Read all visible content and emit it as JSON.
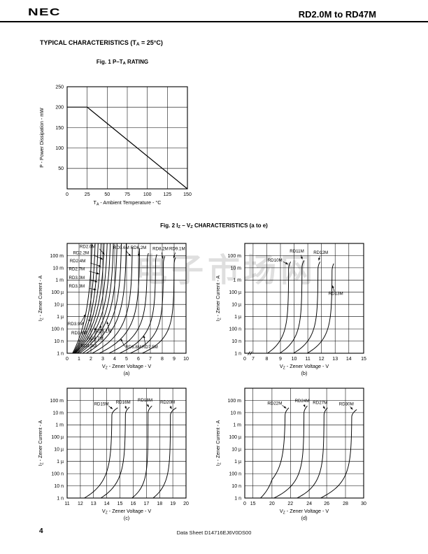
{
  "header": {
    "logo": "NEC",
    "title": "RD2.0M to RD47M"
  },
  "section_title": [
    {
      "t": "TYPICAL CHARACTERISTICS (T"
    },
    {
      "t": "A",
      "sub": true
    },
    {
      "t": " = 25°C)"
    }
  ],
  "fig1_caption": [
    {
      "t": "Fig. 1  P–T"
    },
    {
      "t": "A",
      "sub": true
    },
    {
      "t": " RATING"
    }
  ],
  "fig2_caption": [
    {
      "t": "Fig. 2  I"
    },
    {
      "t": "Z",
      "sub": true
    },
    {
      "t": " – V"
    },
    {
      "t": "Z",
      "sub": true
    },
    {
      "t": " CHARACTERISTICS (a to e)"
    }
  ],
  "watermark": {
    "text": "电子市场网"
  },
  "footer": {
    "page_number": "4",
    "doc_number": "Data Sheet  D14716EJ6V0DS00"
  },
  "chart_data": [
    {
      "id": "fig1",
      "type": "line",
      "title": "Fig. 1 P–TA RATING",
      "xlabel": [
        {
          "t": "T"
        },
        {
          "t": "A",
          "sub": true
        },
        {
          "t": " - Ambient Temperature - °C"
        }
      ],
      "ylabel": [
        {
          "t": "P - Power Dissipation - mW"
        }
      ],
      "xlim": [
        0,
        150
      ],
      "ylim": [
        0,
        250
      ],
      "xticks": [
        {
          "label": "0",
          "v": 0
        },
        {
          "label": "25",
          "v": 25
        },
        {
          "label": "50",
          "v": 50
        },
        {
          "label": "75",
          "v": 75
        },
        {
          "label": "100",
          "v": 100
        },
        {
          "label": "125",
          "v": 125
        },
        {
          "label": "150",
          "v": 150
        }
      ],
      "yticks": [
        {
          "label": "50",
          "v": 50
        },
        {
          "label": "100",
          "v": 100
        },
        {
          "label": "150",
          "v": 150
        },
        {
          "label": "200",
          "v": 200
        },
        {
          "label": "250",
          "v": 250
        }
      ],
      "series": [
        {
          "name": "power-derating",
          "points": [
            [
              0,
              200
            ],
            [
              25,
              200
            ],
            [
              150,
              0
            ]
          ]
        }
      ]
    },
    {
      "id": "a",
      "type": "zener",
      "sublabel": "(a)",
      "xlabel": [
        {
          "t": "V"
        },
        {
          "t": "Z",
          "sub": true
        },
        {
          "t": " - Zener Voltage - V"
        }
      ],
      "ylabel": [
        {
          "t": "I"
        },
        {
          "t": "Z",
          "sub": true
        },
        {
          "t": " - Zener Current - A"
        }
      ],
      "yticks": [
        "100 m",
        "10 m",
        "1 m",
        "100 µ",
        "10 µ",
        "1 µ",
        "100 n",
        "10 n",
        "1 n"
      ],
      "xticks": [
        {
          "label": "0",
          "v": 0,
          "p": 0
        },
        {
          "label": "1",
          "v": 1,
          "p": 0.1
        },
        {
          "label": "2",
          "v": 2,
          "p": 0.2
        },
        {
          "label": "3",
          "v": 3,
          "p": 0.3
        },
        {
          "label": "4",
          "v": 4,
          "p": 0.4
        },
        {
          "label": "5",
          "v": 5,
          "p": 0.5
        },
        {
          "label": "6",
          "v": 6,
          "p": 0.6
        },
        {
          "label": "7",
          "v": 7,
          "p": 0.7
        },
        {
          "label": "8",
          "v": 8,
          "p": 0.8
        },
        {
          "label": "9",
          "v": 9,
          "p": 0.9
        },
        {
          "label": "10",
          "v": 10,
          "p": 1
        }
      ],
      "curves": [
        {
          "name": "RD2.0M",
          "xb": 0.45,
          "xt": 2.2,
          "tau": 3.2,
          "dtop": 9,
          "hook": 0
        },
        {
          "name": "RD2.2M",
          "xb": 0.5,
          "xt": 2.45,
          "tau": 3.0,
          "dtop": 9,
          "hook": 0
        },
        {
          "name": "RD2.4M",
          "xb": 0.55,
          "xt": 2.7,
          "tau": 2.9,
          "dtop": 9,
          "hook": 0
        },
        {
          "name": "RD2.7M",
          "xb": 0.6,
          "xt": 2.95,
          "tau": 2.8,
          "dtop": 9,
          "hook": 0
        },
        {
          "name": "RD3.0M",
          "xb": 0.65,
          "xt": 3.2,
          "tau": 2.7,
          "dtop": 9,
          "hook": 0
        },
        {
          "name": "RD3.3M",
          "xb": 0.7,
          "xt": 3.45,
          "tau": 2.6,
          "dtop": 9,
          "hook": 0
        },
        {
          "name": "RD3.6M",
          "xb": 0.8,
          "xt": 3.7,
          "tau": 2.45,
          "dtop": 9,
          "hook": 0
        },
        {
          "name": "RD3.9M",
          "xb": 0.9,
          "xt": 3.95,
          "tau": 2.3,
          "dtop": 9,
          "hook": 0
        },
        {
          "name": "RD4.3M",
          "xb": 1.05,
          "xt": 4.25,
          "tau": 2.2,
          "dtop": 9,
          "hook": 0
        },
        {
          "name": "RD4.7M",
          "xb": 1.3,
          "xt": 4.6,
          "tau": 2.05,
          "dtop": 9,
          "hook": 0
        },
        {
          "name": "RD5.1M",
          "xb": 1.6,
          "xt": 5.0,
          "tau": 1.9,
          "dtop": 9,
          "hook": 0
        },
        {
          "name": "RD5.6M",
          "xb": 2.1,
          "xt": 5.5,
          "tau": 1.7,
          "dtop": 8.7,
          "hook": 0
        },
        {
          "name": "RD6.2M",
          "xb": 2.7,
          "xt": 6.1,
          "tau": 1.55,
          "dtop": 8.6,
          "hook": 0
        },
        {
          "name": "RD6.8M",
          "xb": 3.5,
          "xt": 6.75,
          "tau": 1.4,
          "dtop": 8.2,
          "hook": 0.1
        },
        {
          "name": "RD7.5M",
          "xb": 4.4,
          "xt": 7.45,
          "tau": 1.3,
          "dtop": 8.1,
          "hook": 0.1
        },
        {
          "name": "RD8.2M",
          "xb": 5.3,
          "xt": 8.1,
          "tau": 1.2,
          "dtop": 7.95,
          "hook": 0.12
        },
        {
          "name": "RD9.1M",
          "xb": 6.3,
          "xt": 9.0,
          "tau": 1.15,
          "dtop": 7.85,
          "hook": 0.12
        }
      ],
      "labels": [
        {
          "text": "RD2.0M",
          "anchor": "start",
          "lx": 1.05,
          "ld": 8.62,
          "ax1": 2.72,
          "ay1": 8.55,
          "ax2": 3.15,
          "ay2": 8.1
        },
        {
          "text": "RD2.2M",
          "anchor": "start",
          "lx": 0.5,
          "ld": 8.12,
          "ax1": 2.2,
          "ay1": 8.05,
          "ax2": 3.0,
          "ay2": 7.7
        },
        {
          "text": "RD2.4M",
          "anchor": "start",
          "lx": 0.22,
          "ld": 7.45,
          "ax1": 1.95,
          "ay1": 7.4,
          "ax2": 2.85,
          "ay2": 7.1
        },
        {
          "text": "RD2.7M",
          "anchor": "start",
          "lx": 0.15,
          "ld": 6.78,
          "ax1": 1.85,
          "ay1": 6.72,
          "ax2": 2.7,
          "ay2": 6.5
        },
        {
          "text": "RD3.0M",
          "anchor": "start",
          "lx": 0.15,
          "ld": 6.08,
          "ax1": 1.85,
          "ay1": 6.02,
          "ax2": 2.55,
          "ay2": 5.85
        },
        {
          "text": "RD3.3M",
          "anchor": "start",
          "lx": 0.15,
          "ld": 5.38,
          "ax1": 1.85,
          "ay1": 5.32,
          "ax2": 2.45,
          "ay2": 5.2
        },
        {
          "text": "RD5.6M",
          "anchor": "middle",
          "lx": 4.55,
          "ld": 8.55,
          "ax1": 4.95,
          "ay1": 8.4,
          "ax2": 5.35,
          "ay2": 7.95
        },
        {
          "text": "RD6.2M",
          "anchor": "middle",
          "lx": 6.0,
          "ld": 8.55,
          "ax1": 6.0,
          "ay1": 8.35,
          "ax2": 6.05,
          "ay2": 7.95
        },
        {
          "text": "RD8.2M",
          "anchor": "middle",
          "lx": 7.85,
          "ld": 8.45,
          "ax1": 7.95,
          "ay1": 8.25,
          "ax2": 8.05,
          "ay2": 7.75
        },
        {
          "text": "RD9.1M",
          "anchor": "middle",
          "lx": 9.25,
          "ld": 8.45,
          "ax1": 9.1,
          "ay1": 8.25,
          "ax2": 8.95,
          "ay2": 7.8
        },
        {
          "text": "RD3.9M",
          "anchor": "start",
          "lx": 0.05,
          "ld": 2.3,
          "ax1": 1.15,
          "ay1": 2.5,
          "ax2": 1.55,
          "ay2": 3.2
        },
        {
          "text": "RD3.6M",
          "anchor": "start",
          "lx": 0.35,
          "ld": 1.55,
          "ax1": 1.55,
          "ay1": 1.75,
          "ax2": 1.9,
          "ay2": 2.85
        },
        {
          "text": "RD4.3M",
          "anchor": "start",
          "lx": 1.15,
          "ld": 0.5,
          "ax1": 2.35,
          "ay1": 0.7,
          "ax2": 2.35,
          "ay2": 2.1
        },
        {
          "text": "RD4.7M",
          "anchor": "start",
          "lx": 1.7,
          "ld": 1.1,
          "ax1": 2.9,
          "ay1": 1.25,
          "ax2": 2.8,
          "ay2": 2.3
        },
        {
          "text": "RD5.1M",
          "anchor": "start",
          "lx": 2.4,
          "ld": 1.7,
          "ax1": 3.55,
          "ay1": 1.85,
          "ax2": 3.35,
          "ay2": 2.6
        },
        {
          "text": "RD6.8M",
          "anchor": "start",
          "lx": 4.9,
          "ld": 0.4,
          "ax1": 4.85,
          "ay1": 0.55,
          "ax2": 4.5,
          "ay2": 1.2
        },
        {
          "text": "RD7.5M",
          "anchor": "start",
          "lx": 6.3,
          "ld": 0.4,
          "ax1": 6.6,
          "ay1": 0.6,
          "ax2": 6.45,
          "ay2": 1.45
        }
      ]
    },
    {
      "id": "b",
      "type": "zener",
      "sublabel": "(b)",
      "xbreak": 0.035,
      "xlabel": [
        {
          "t": "V"
        },
        {
          "t": "Z",
          "sub": true
        },
        {
          "t": " - Zener Voltage - V"
        }
      ],
      "ylabel": [
        {
          "t": "I"
        },
        {
          "t": "Z",
          "sub": true
        },
        {
          "t": " - Zener Current - A"
        }
      ],
      "yticks": [
        "100 m",
        "10 m",
        "1 m",
        "100 µ",
        "10 µ",
        "1 µ",
        "100 n",
        "10 n",
        "1 n"
      ],
      "xticks": [
        {
          "label": "0",
          "v": 0,
          "p": 0
        },
        {
          "label": "7",
          "v": 7,
          "p": 0.07
        },
        {
          "label": "8",
          "v": 8,
          "p": 0.185
        },
        {
          "label": "9",
          "v": 9,
          "p": 0.3
        },
        {
          "label": "10",
          "v": 10,
          "p": 0.415
        },
        {
          "label": "11",
          "v": 11,
          "p": 0.53
        },
        {
          "label": "12",
          "v": 12,
          "p": 0.645
        },
        {
          "label": "13",
          "v": 13,
          "p": 0.76
        },
        {
          "label": "14",
          "v": 14,
          "p": 0.875
        },
        {
          "label": "15",
          "v": 15,
          "p": 1
        }
      ],
      "curves": [
        {
          "name": "RD10M",
          "xb": 8.05,
          "xt": 9.6,
          "tau": 1.15,
          "dtop": 7.5,
          "hook": 0.15
        },
        {
          "name": "RD11M",
          "xb": 8.95,
          "xt": 10.58,
          "tau": 1.15,
          "dtop": 7.6,
          "hook": 0.15
        },
        {
          "name": "RD12M",
          "xb": 9.95,
          "xt": 11.75,
          "tau": 1.15,
          "dtop": 7.5,
          "hook": 0.15
        },
        {
          "name": "RD13M",
          "xb": 10.95,
          "xt": 12.78,
          "tau": 1.15,
          "dtop": 7.35,
          "hook": 0.12
        }
      ],
      "labels": [
        {
          "text": "RD10M",
          "anchor": "middle",
          "lx": 8.6,
          "ld": 7.5,
          "ax1": 9.2,
          "ay1": 7.5,
          "ax2": 9.55,
          "ay2": 7.3
        },
        {
          "text": "RD11M",
          "anchor": "middle",
          "lx": 10.2,
          "ld": 8.25,
          "ax1": 10.5,
          "ay1": 8.05,
          "ax2": 10.6,
          "ay2": 7.7
        },
        {
          "text": "RD12M",
          "anchor": "middle",
          "lx": 11.95,
          "ld": 8.15,
          "ax1": 11.88,
          "ay1": 7.95,
          "ax2": 11.8,
          "ay2": 7.6
        },
        {
          "text": "RD13M",
          "anchor": "middle",
          "lx": 13.05,
          "ld": 4.8,
          "ax1": 12.95,
          "ay1": 5.05,
          "ax2": 12.8,
          "ay2": 5.55
        }
      ]
    },
    {
      "id": "c",
      "type": "zener",
      "sublabel": "(c)",
      "xlabel": [
        {
          "t": "V"
        },
        {
          "t": "Z",
          "sub": true
        },
        {
          "t": " - Zener Voltage - V"
        }
      ],
      "ylabel": [
        {
          "t": "I"
        },
        {
          "t": "Z",
          "sub": true
        },
        {
          "t": " - Zener Current - A"
        }
      ],
      "yticks": [
        "100 m",
        "10 m",
        "1 m",
        "100 µ",
        "10 µ",
        "1 µ",
        "100 n",
        "10 n",
        "1 n"
      ],
      "xticks": [
        {
          "label": "11",
          "v": 11,
          "p": 0
        },
        {
          "label": "12",
          "v": 12,
          "p": 0.111
        },
        {
          "label": "13",
          "v": 13,
          "p": 0.222
        },
        {
          "label": "14",
          "v": 14,
          "p": 0.333
        },
        {
          "label": "15",
          "v": 15,
          "p": 0.444
        },
        {
          "label": "16",
          "v": 16,
          "p": 0.556
        },
        {
          "label": "17",
          "v": 17,
          "p": 0.667
        },
        {
          "label": "18",
          "v": 18,
          "p": 0.778
        },
        {
          "label": "19",
          "v": 19,
          "p": 0.889
        },
        {
          "label": "20",
          "v": 20,
          "p": 1
        }
      ],
      "curves": [
        {
          "name": "RD15M",
          "xb": 12.3,
          "xt": 14.4,
          "tau": 1.3,
          "dtop": 7.4,
          "hook": 0.45
        },
        {
          "name": "RD16M",
          "xb": 13.55,
          "xt": 15.42,
          "tau": 1.25,
          "dtop": 7.45,
          "hook": 0.3
        },
        {
          "name": "RD18M",
          "xb": 15.9,
          "xt": 17.12,
          "tau": 1.0,
          "dtop": 7.55,
          "hook": 0.3
        },
        {
          "name": "RD20M",
          "xb": 17.5,
          "xt": 18.82,
          "tau": 1.1,
          "dtop": 7.4,
          "hook": 0.45
        }
      ],
      "labels": [
        {
          "text": "RD15M",
          "anchor": "middle",
          "lx": 13.6,
          "ld": 7.6,
          "ax1": 14.15,
          "ay1": 7.55,
          "ax2": 14.45,
          "ay2": 7.3
        },
        {
          "text": "RD16M",
          "anchor": "middle",
          "lx": 15.25,
          "ld": 7.75,
          "ax1": 15.4,
          "ay1": 7.55,
          "ax2": 15.48,
          "ay2": 7.3
        },
        {
          "text": "RD18M",
          "anchor": "middle",
          "lx": 16.9,
          "ld": 7.9,
          "ax1": 17.05,
          "ay1": 7.7,
          "ax2": 17.18,
          "ay2": 7.45
        },
        {
          "text": "RD20M",
          "anchor": "middle",
          "lx": 18.6,
          "ld": 7.75,
          "ax1": 18.8,
          "ay1": 7.55,
          "ax2": 18.9,
          "ay2": 7.3
        }
      ]
    },
    {
      "id": "d",
      "type": "zener",
      "sublabel": "(d)",
      "xlabel": [
        {
          "t": "V"
        },
        {
          "t": "Z",
          "sub": true
        },
        {
          "t": " - Zener Voltage - V"
        }
      ],
      "ylabel": [
        {
          "t": "I"
        },
        {
          "t": "Z",
          "sub": true
        },
        {
          "t": " - Zener Current - A"
        }
      ],
      "yticks": [
        "100 m",
        "10 m",
        "1 m",
        "100 µ",
        "10 µ",
        "1 µ",
        "100 n",
        "10 n",
        "1 n"
      ],
      "xticks": [
        {
          "label": "0",
          "v": 0,
          "p": 0
        },
        {
          "label": "15",
          "v": 15,
          "p": 0.068
        },
        {
          "label": "20",
          "v": 20,
          "p": 0.229
        },
        {
          "label": "22",
          "v": 22,
          "p": 0.384
        },
        {
          "label": "24",
          "v": 24,
          "p": 0.542
        },
        {
          "label": "26",
          "v": 26,
          "p": 0.689
        },
        {
          "label": "28",
          "v": 28,
          "p": 0.847
        },
        {
          "label": "30",
          "v": 30,
          "p": 1
        }
      ],
      "curves": [
        {
          "name": "RD22M",
          "xb": 17.0,
          "xt": 21.45,
          "tau": 1.35,
          "dtop": 7.4,
          "hook": 0.4
        },
        {
          "name": "RD24M",
          "xb": 20.2,
          "xt": 23.45,
          "tau": 1.15,
          "dtop": 7.55,
          "hook": 0.35
        },
        {
          "name": "RD27M",
          "xb": 22.7,
          "xt": 25.7,
          "tau": 1.15,
          "dtop": 7.4,
          "hook": 0.4
        },
        {
          "name": "RD30M",
          "xb": 25.3,
          "xt": 28.7,
          "tau": 1.2,
          "dtop": 7.25,
          "hook": 0.55
        }
      ],
      "labels": [
        {
          "text": "RD22M",
          "anchor": "middle",
          "lx": 20.3,
          "ld": 7.65,
          "ax1": 21.1,
          "ay1": 7.6,
          "ax2": 21.55,
          "ay2": 7.35
        },
        {
          "text": "RD24M",
          "anchor": "middle",
          "lx": 23.25,
          "ld": 7.85,
          "ax1": 23.45,
          "ay1": 7.65,
          "ax2": 23.55,
          "ay2": 7.45
        },
        {
          "text": "RD27M",
          "anchor": "middle",
          "lx": 25.25,
          "ld": 7.7,
          "ax1": 25.6,
          "ay1": 7.55,
          "ax2": 25.8,
          "ay2": 7.3
        },
        {
          "text": "RD30M",
          "anchor": "middle",
          "lx": 28.1,
          "ld": 7.6,
          "ax1": 28.5,
          "ay1": 7.5,
          "ax2": 28.8,
          "ay2": 7.25
        }
      ]
    }
  ]
}
